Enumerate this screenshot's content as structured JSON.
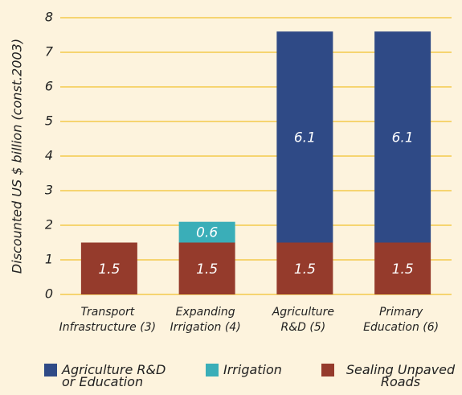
{
  "chart_data": {
    "type": "stacked_bar",
    "y_label": "Discounted US $ billion (const.2003)",
    "categories": [
      [
        "Transport",
        "Infrastructure (3)"
      ],
      [
        "Expanding",
        "Irrigation (4)"
      ],
      [
        "Agriculture",
        "R&D (5)"
      ],
      [
        "Primary",
        "Education (6)"
      ]
    ],
    "series": [
      {
        "name": "Sealing Unpaved Roads",
        "color": "#953b2c",
        "values": [
          1.5,
          1.5,
          1.5,
          1.5
        ]
      },
      {
        "name": "Irrigation",
        "color": "#3aaeb8",
        "values": [
          null,
          0.6,
          null,
          null
        ]
      },
      {
        "name": "Agriculture R&D or Education",
        "color": "#2f4a86",
        "values": [
          null,
          null,
          6.1,
          6.1
        ]
      }
    ],
    "legend_order": [
      2,
      1,
      0
    ],
    "ylim": [
      0,
      8
    ],
    "yticks": [
      0,
      1,
      2,
      3,
      4,
      5,
      6,
      7,
      8
    ],
    "grid": true,
    "grid_color": "#f2c230"
  }
}
